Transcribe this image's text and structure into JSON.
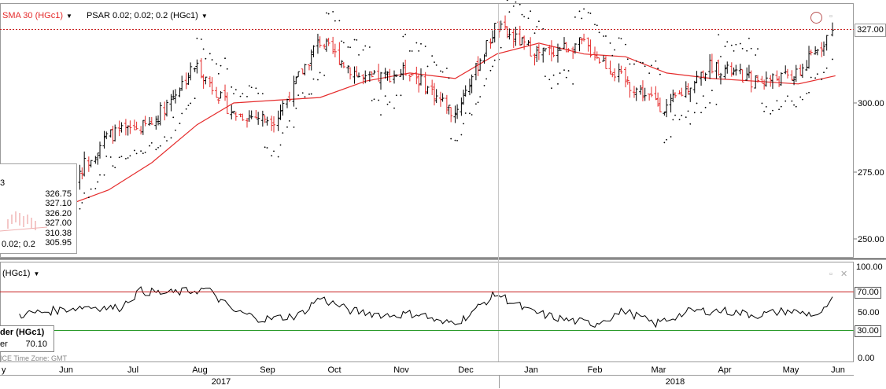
{
  "legend": {
    "sma_label": "SMA 30 (HGc1)",
    "psar_label": "PSAR 0.02; 0.02; 0.2 (HGc1)",
    "sub_label": "(HGc1)",
    "sma_color": "#e52b2b",
    "bar_up_color": "#000000",
    "bar_down_color": "#e52b2b",
    "psar_color": "#000000"
  },
  "popup": {
    "fragment": "3",
    "values": [
      "326.75",
      "327.10",
      "326.20",
      "327.00",
      "310.38",
      "305.95"
    ],
    "caption": "0.02; 0.2"
  },
  "last_price": "327.00",
  "right_axis": {
    "price_ticks": [
      "327.00",
      "300.00",
      "275.00",
      "250.00"
    ],
    "osc_ticks": [
      "100.00",
      "70.00",
      "50.00",
      "30.00",
      "0.00"
    ]
  },
  "datatip": {
    "title": "der (HGc1)",
    "row_label": "er",
    "row_value": "70.10"
  },
  "timezone": "ICE   Time Zone: GMT",
  "x_axis": {
    "months": [
      "y",
      "Jun",
      "Jul",
      "Aug",
      "Sep",
      "Oct",
      "Nov",
      "Dec",
      "Jan",
      "Feb",
      "Mar",
      "Apr",
      "May",
      "Jun"
    ],
    "years": [
      "2017",
      "2018"
    ]
  },
  "chart_data": [
    {
      "type": "ohlc",
      "series": [
        {
          "name": "SMA 30 (HGc1)",
          "type": "line",
          "x": [
            "2017-05-25",
            "2017-06-15",
            "2017-07-05",
            "2017-07-25",
            "2017-08-15",
            "2017-09-01",
            "2017-09-20",
            "2017-10-10",
            "2017-10-31",
            "2017-11-20",
            "2017-12-11",
            "2017-12-31",
            "2018-01-20",
            "2018-02-10",
            "2018-03-01",
            "2018-03-20",
            "2018-04-10",
            "2018-04-30",
            "2018-05-20",
            "2018-06-05"
          ],
          "y": [
            255,
            262,
            268,
            278,
            292,
            300,
            301,
            302,
            308,
            311,
            309,
            318,
            322,
            318,
            317,
            311,
            309,
            308,
            307,
            310
          ]
        },
        {
          "name": "PSAR 0.02; 0.02; 0.2 (HGc1)",
          "type": "scatter",
          "note": "parabolic SAR dots"
        }
      ],
      "close_approx": {
        "x": [
          "2017-05-25",
          "2017-06-15",
          "2017-07-05",
          "2017-07-25",
          "2017-08-15",
          "2017-09-01",
          "2017-09-20",
          "2017-10-10",
          "2017-10-31",
          "2017-11-20",
          "2017-12-11",
          "2017-12-31",
          "2018-01-20",
          "2018-02-10",
          "2018-03-01",
          "2018-03-20",
          "2018-04-10",
          "2018-04-30",
          "2018-05-20",
          "2018-06-05"
        ],
        "y": [
          258,
          268,
          288,
          292,
          314,
          296,
          294,
          323,
          308,
          312,
          296,
          328,
          318,
          322,
          308,
          298,
          314,
          308,
          310,
          327
        ]
      },
      "last": 327.0,
      "ylim": [
        245,
        335
      ],
      "yticks": [
        250,
        275,
        300,
        327
      ]
    },
    {
      "type": "line",
      "series": [
        {
          "name": "(HGc1)",
          "x": [
            "2017-05-25",
            "2017-06-10",
            "2017-06-25",
            "2017-07-10",
            "2017-07-20",
            "2017-08-01",
            "2017-08-20",
            "2017-09-01",
            "2017-09-15",
            "2017-10-01",
            "2017-10-10",
            "2017-10-25",
            "2017-11-10",
            "2017-11-25",
            "2017-12-05",
            "2017-12-15",
            "2017-12-31",
            "2018-01-15",
            "2018-02-01",
            "2018-02-15",
            "2018-03-01",
            "2018-03-15",
            "2018-04-01",
            "2018-04-15",
            "2018-05-01",
            "2018-05-15",
            "2018-05-31",
            "2018-06-05"
          ],
          "y": [
            50,
            55,
            60,
            58,
            78,
            75,
            80,
            55,
            45,
            50,
            70,
            55,
            50,
            52,
            40,
            45,
            75,
            55,
            45,
            40,
            55,
            40,
            55,
            55,
            50,
            55,
            50,
            70
          ]
        }
      ],
      "hlines": [
        70,
        30
      ],
      "ylim": [
        -5,
        105
      ],
      "yticks": [
        0,
        30,
        50,
        70,
        100
      ]
    }
  ]
}
